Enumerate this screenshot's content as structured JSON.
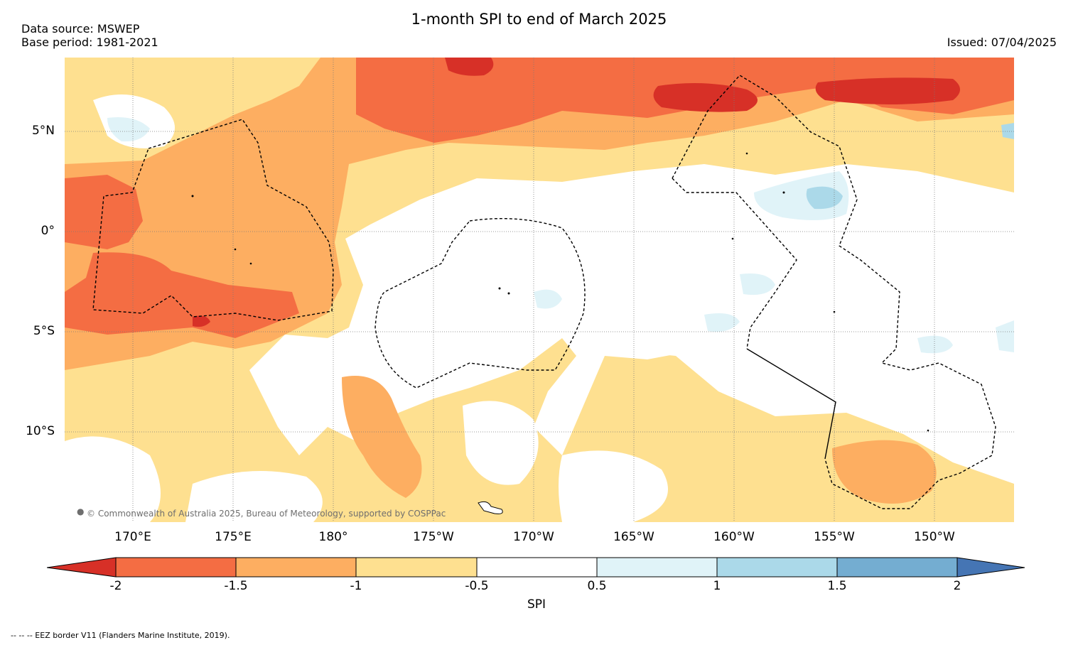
{
  "header": {
    "title": "1-month SPI to end of March 2025",
    "data_source": "Data source: MSWEP",
    "base_period": "Base period: 1981-2021",
    "issued": "Issued: 07/04/2025"
  },
  "map": {
    "lat_labels": [
      "5°N",
      "0°",
      "5°S",
      "10°S"
    ],
    "lon_labels": [
      "170°E",
      "175°E",
      "180°",
      "175°W",
      "170°W",
      "165°W",
      "160°W",
      "155°W",
      "150°W"
    ],
    "credit": "© Commonwealth of Australia 2025, Bureau of Meteorology, supported by COSPPac",
    "gridlines": true,
    "border_style": "dashed"
  },
  "colorbar": {
    "title": "SPI",
    "ticks": [
      "-2",
      "-1.5",
      "-1",
      "-0.5",
      "0.5",
      "1",
      "1.5",
      "2"
    ],
    "colors": {
      "below_-2": "#d73027",
      "-2_to_-1.5": "#f46d43",
      "-1.5_to_-1": "#fdae61",
      "-1_to_-0.5": "#fee090",
      "-0.5_to_0.5": "#ffffff",
      "0.5_to_1": "#e0f3f8",
      "1_to_1.5": "#abd9e9",
      "1.5_to_2": "#74add1",
      "above_2": "#4575b4"
    }
  },
  "footer": {
    "note": "--  --  -- EEZ border V11 (Flanders Marine Institute, 2019)."
  }
}
